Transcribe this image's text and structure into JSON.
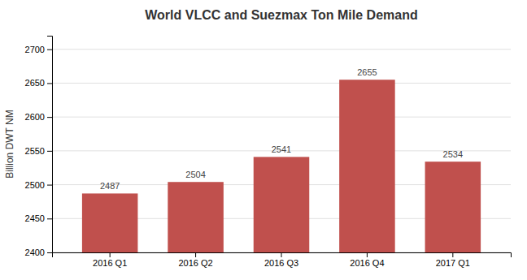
{
  "chart_data": {
    "type": "bar",
    "title": "World VLCC and Suezmax Ton Mile Demand",
    "categories": [
      "2016 Q1",
      "2016 Q2",
      "2016 Q3",
      "2016 Q4",
      "2017 Q1"
    ],
    "values": [
      2487,
      2504,
      2541,
      2655,
      2534
    ],
    "color": "#c0504d",
    "ylabel": "Billion DWT NM",
    "ylim": [
      2400,
      2720
    ],
    "yticks": [
      2400,
      2450,
      2500,
      2550,
      2600,
      2650,
      2700
    ],
    "grid": true,
    "data_labels": true
  }
}
